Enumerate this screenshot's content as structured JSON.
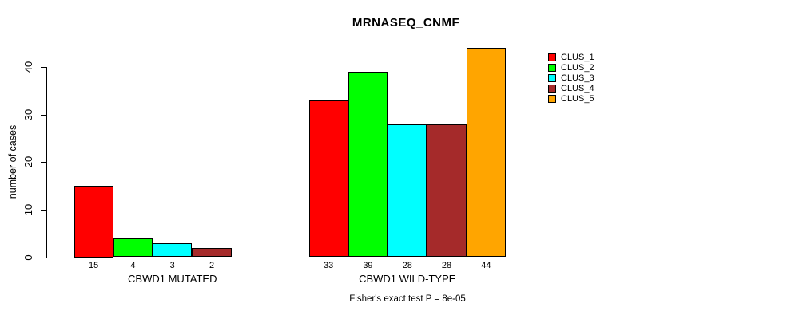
{
  "chart": {
    "title": "MRNASEQ_CNMF",
    "footer": "Fisher's exact test P = 8e-05",
    "ylabel": "number of cases"
  },
  "chart_data": {
    "type": "bar",
    "title": "MRNASEQ_CNMF",
    "xlabel": "",
    "ylabel": "number of cases",
    "ylim": [
      0,
      44
    ],
    "yticks": [
      0,
      10,
      20,
      30,
      40
    ],
    "grid": false,
    "legend_position": "right",
    "series_names": [
      "CLUS_1",
      "CLUS_2",
      "CLUS_3",
      "CLUS_4",
      "CLUS_5"
    ],
    "colors": [
      "#FF0000",
      "#00FF00",
      "#00FFFF",
      "#A52A2A",
      "#FFA500"
    ],
    "groups": [
      {
        "label": "CBWD1 MUTATED",
        "values": [
          15,
          4,
          3,
          2,
          0
        ],
        "value_labels": [
          "15",
          "4",
          "3",
          "2",
          ""
        ]
      },
      {
        "label": "CBWD1 WILD-TYPE",
        "values": [
          33,
          39,
          28,
          28,
          44
        ],
        "value_labels": [
          "33",
          "39",
          "28",
          "28",
          "44"
        ]
      }
    ],
    "annotation": "Fisher's exact test P = 8e-05"
  }
}
